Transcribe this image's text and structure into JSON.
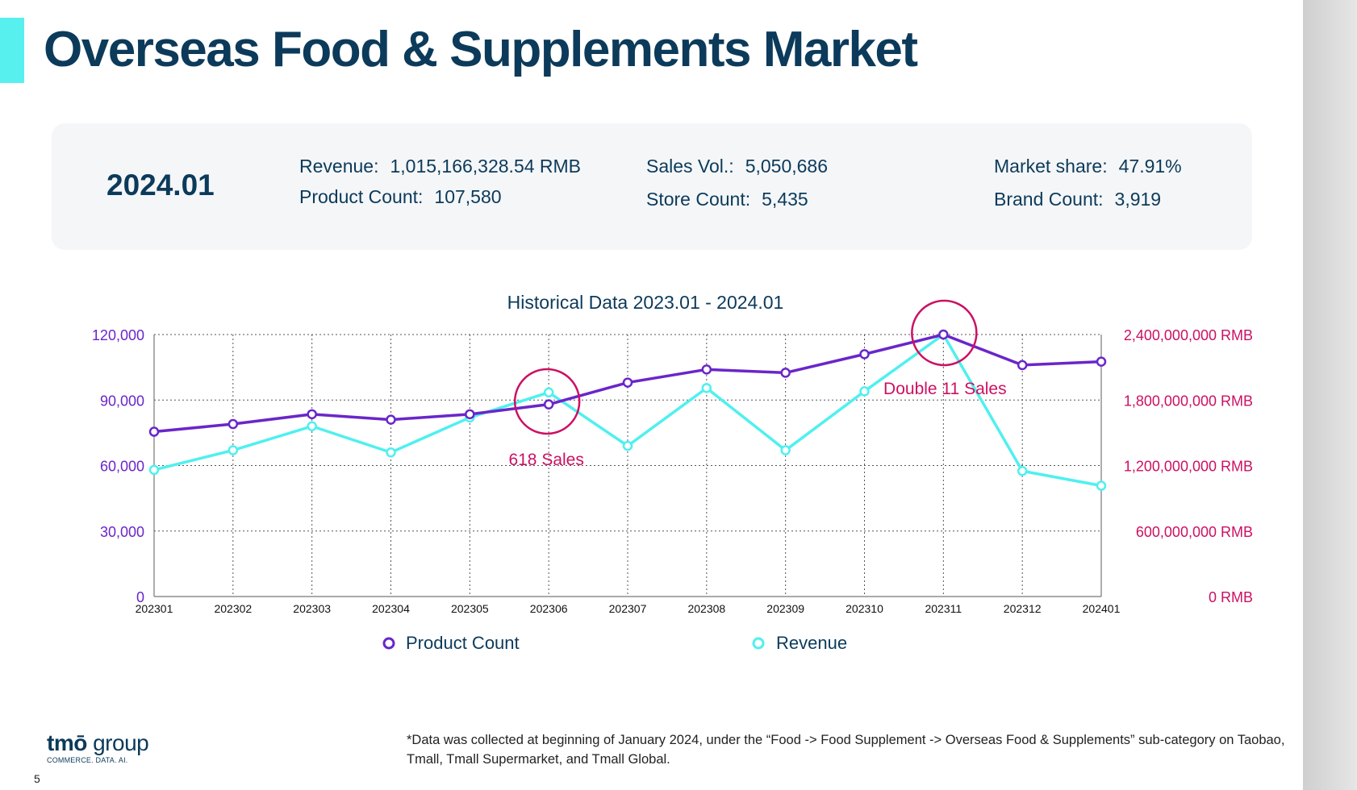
{
  "title": "Overseas Food & Supplements Market",
  "summary": {
    "period": "2024.01",
    "revenue_label": "Revenue:",
    "revenue_value": "1,015,166,328.54 RMB",
    "product_count_label": "Product Count:",
    "product_count_value": "107,580",
    "sales_vol_label": "Sales Vol.:",
    "sales_vol_value": "5,050,686",
    "store_count_label": "Store Count:",
    "store_count_value": "5,435",
    "market_share_label": "Market share:",
    "market_share_value": "47.91%",
    "brand_count_label": "Brand Count:",
    "brand_count_value": "3,919"
  },
  "colors": {
    "product_count": "#6a26c9",
    "revenue": "#4ff0ef",
    "annotation": "#cc1063",
    "title": "#0c3a5a"
  },
  "chart_data": {
    "type": "line",
    "title": "Historical Data 2023.01 - 2024.01",
    "x": [
      "202301",
      "202302",
      "202303",
      "202304",
      "202305",
      "202306",
      "202307",
      "202308",
      "202309",
      "202310",
      "202311",
      "202312",
      "202401"
    ],
    "y_left_lim": [
      0,
      120000
    ],
    "y_left_ticks": [
      "0",
      "30,000",
      "60,000",
      "90,000",
      "120,000"
    ],
    "y_right_lim": [
      0,
      2400000000
    ],
    "y_right_ticks": [
      "0 RMB",
      "600,000,000 RMB",
      "1,200,000,000 RMB",
      "1,800,000,000 RMB",
      "2,400,000,000 RMB"
    ],
    "grid": true,
    "legend_position": "bottom",
    "series": [
      {
        "name": "Product Count",
        "axis": "left",
        "values": [
          75500,
          79000,
          83500,
          81000,
          83500,
          88000,
          98000,
          104000,
          102500,
          111000,
          120000,
          106000,
          107580
        ]
      },
      {
        "name": "Revenue",
        "axis": "right",
        "values": [
          1160000000,
          1340000000,
          1560000000,
          1320000000,
          1640000000,
          1870000000,
          1380000000,
          1910000000,
          1340000000,
          1880000000,
          2400000000,
          1150000000,
          1015166328.54
        ]
      }
    ],
    "annotations": [
      {
        "label": "618  Sales",
        "x": "202306"
      },
      {
        "label": "Double 11 Sales",
        "x": "202311"
      }
    ]
  },
  "footer": {
    "logo_text_bold": "tmō",
    "logo_text": " group",
    "logo_tagline": "COMMERCE. DATA. AI.",
    "footnote": "*Data was collected at beginning of January 2024, under the “Food -> Food Supplement -> Overseas Food & Supplements” sub-category on Taobao, Tmall, Tmall Supermarket, and Tmall Global.",
    "page_number": "5"
  }
}
